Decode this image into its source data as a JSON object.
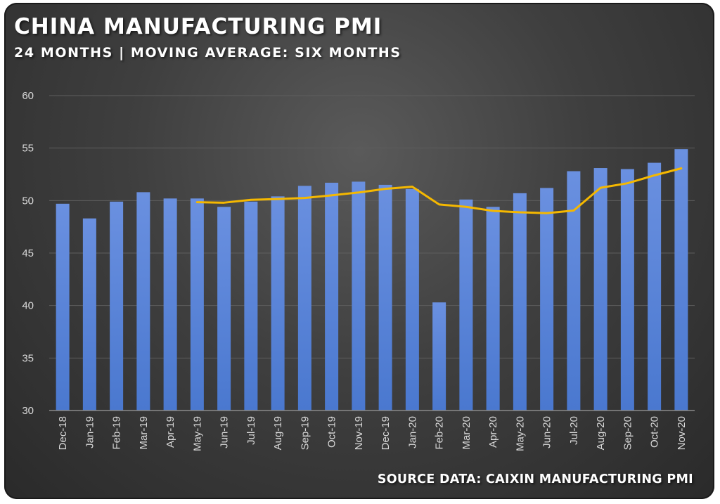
{
  "header": {
    "title": "CHINA MANUFACTURING PMI",
    "subtitle": "24 MONTHS | MOVING AVERAGE: SIX MONTHS"
  },
  "footer": {
    "source": "SOURCE DATA: CAIXIN MANUFACTURING PMI"
  },
  "colors": {
    "bar": "#4a78cf",
    "line": "#f5b800",
    "grid": "#5e5e5e",
    "axis": "#8a8a8a",
    "text": "#d9d9d9"
  },
  "chart_data": {
    "type": "bar",
    "title": "CHINA MANUFACTURING PMI",
    "subtitle": "24 MONTHS | MOVING AVERAGE: SIX MONTHS",
    "categories": [
      "Dec-18",
      "Jan-19",
      "Feb-19",
      "Mar-19",
      "Apr-19",
      "May-19",
      "Jun-19",
      "Jul-19",
      "Aug-19",
      "Sep-19",
      "Oct-19",
      "Nov-19",
      "Dec-19",
      "Jan-20",
      "Feb-20",
      "Mar-20",
      "Apr-20",
      "May-20",
      "Jun-20",
      "Jul-20",
      "Aug-20",
      "Sep-20",
      "Oct-20",
      "Nov-20"
    ],
    "series": [
      {
        "type": "bar",
        "values": [
          49.7,
          48.3,
          49.9,
          50.8,
          50.2,
          50.2,
          49.4,
          49.9,
          50.4,
          51.4,
          51.7,
          51.8,
          51.5,
          51.1,
          40.3,
          50.1,
          49.4,
          50.7,
          51.2,
          52.8,
          53.1,
          53.0,
          53.6,
          54.9
        ]
      },
      {
        "type": "line",
        "values": [
          null,
          null,
          null,
          null,
          null,
          49.85,
          49.8,
          50.07,
          50.15,
          50.25,
          50.5,
          50.77,
          51.12,
          51.32,
          49.63,
          49.4,
          49.02,
          48.88,
          48.8,
          49.05,
          51.22,
          51.65,
          52.4,
          53.07
        ]
      }
    ],
    "ylim": [
      30,
      60
    ],
    "yticks": [
      30,
      35,
      40,
      45,
      50,
      55,
      60
    ],
    "grid": true,
    "legend": "none"
  }
}
